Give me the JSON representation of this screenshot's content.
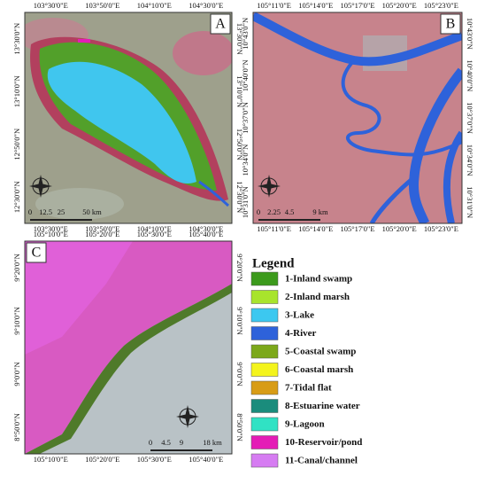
{
  "panels": [
    {
      "label": "A",
      "top": [
        "103°30'0\"E",
        "103°50'0\"E",
        "104°10'0\"E",
        "104°30'0\"E"
      ],
      "bottom": [
        "103°30'0\"E",
        "103°50'0\"E",
        "104°10'0\"E",
        "104°30'0\"E"
      ],
      "left": [
        "13°30'0\"N",
        "13°10'0\"N",
        "12°50'0\"N",
        "12°30'0\"N"
      ],
      "right": [
        "13°30'0\"N",
        "13°10'0\"N",
        "12°50'0\"N",
        "12°30'0\"N"
      ],
      "scale": [
        "0",
        "12.5",
        "25",
        "50 km"
      ]
    },
    {
      "label": "B",
      "top": [
        "105°11'0\"E",
        "105°14'0\"E",
        "105°17'0\"E",
        "105°20'0\"E",
        "105°23'0\"E"
      ],
      "bottom": [
        "105°11'0\"E",
        "105°14'0\"E",
        "105°17'0\"E",
        "105°20'0\"E",
        "105°23'0\"E"
      ],
      "left": [
        "10°43'0\"N",
        "10°40'0\"N",
        "10°37'0\"N",
        "10°34'0\"N",
        "10°31'0\"N"
      ],
      "right": [
        "10°43'0\"N",
        "10°40'0\"N",
        "10°37'0\"N",
        "10°34'0\"N",
        "10°31'0\"N"
      ],
      "scale": [
        "0",
        "2.25",
        "4.5",
        "9 km"
      ]
    },
    {
      "label": "C",
      "top": [
        "105°10'0\"E",
        "105°20'0\"E",
        "105°30'0\"E",
        "105°40'0\"E"
      ],
      "bottom": [
        "105°10'0\"E",
        "105°20'0\"E",
        "105°30'0\"E",
        "105°40'0\"E"
      ],
      "left": [
        "9°20'0\"N",
        "9°10'0\"N",
        "9°0'0\"N",
        "8°50'0\"N"
      ],
      "right": [
        "9°20'0\"N",
        "9°10'0\"N",
        "9°0'0\"N",
        "8°50'0\"N"
      ],
      "scale": [
        "0",
        "4.5",
        "9",
        "18 km"
      ]
    }
  ],
  "legend": {
    "title": "Legend",
    "items": [
      {
        "label": "1-Inland swamp",
        "color": "#3c9a1c"
      },
      {
        "label": "2-Inland marsh",
        "color": "#a8e42c"
      },
      {
        "label": "3-Lake",
        "color": "#3cc8f0"
      },
      {
        "label": "4-River",
        "color": "#2e62da"
      },
      {
        "label": "5-Coastal swamp",
        "color": "#7ca81a"
      },
      {
        "label": "6-Coastal marsh",
        "color": "#f4f41c"
      },
      {
        "label": "7-Tidal flat",
        "color": "#d89c16"
      },
      {
        "label": "8-Estuarine water",
        "color": "#1a8c7c"
      },
      {
        "label": "9-Lagoon",
        "color": "#30e2c4"
      },
      {
        "label": "10-Reservoir/pond",
        "color": "#e41cb6"
      },
      {
        "label": "11-Canal/channel",
        "color": "#d67cf2"
      }
    ]
  }
}
